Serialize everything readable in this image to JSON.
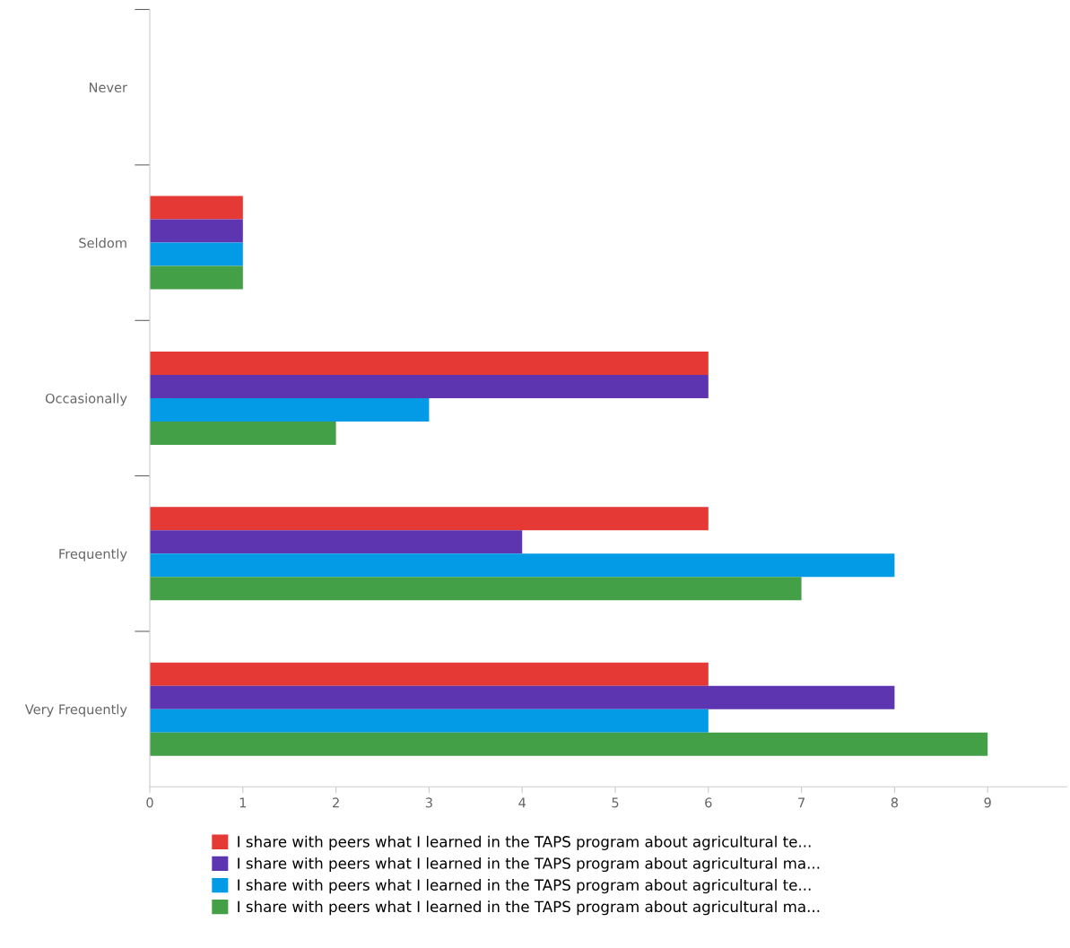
{
  "chart_data": {
    "type": "bar",
    "orientation": "horizontal",
    "categories": [
      "Never",
      "Seldom",
      "Occasionally",
      "Frequently",
      "Very Frequently"
    ],
    "series": [
      {
        "name": "I share with peers what I learned in the TAPS program about agricultural te...",
        "color": "#e53935",
        "values": [
          0,
          1,
          6,
          6,
          6
        ]
      },
      {
        "name": "I share with peers what I learned in the TAPS program about agricultural ma...",
        "color": "#5e35b1",
        "values": [
          0,
          1,
          6,
          4,
          8
        ]
      },
      {
        "name": "I share with peers what I learned in the TAPS program about agricultural te...",
        "color": "#039be5",
        "values": [
          0,
          1,
          3,
          8,
          6
        ]
      },
      {
        "name": "I share with peers what I learned in the TAPS program about agricultural ma...",
        "color": "#43a047",
        "values": [
          0,
          1,
          2,
          7,
          9
        ]
      }
    ],
    "xlim": [
      0,
      9.85
    ],
    "xticks": [
      0,
      1,
      2,
      3,
      4,
      5,
      6,
      7,
      8,
      9
    ],
    "grid": false,
    "legend": "bottom"
  }
}
